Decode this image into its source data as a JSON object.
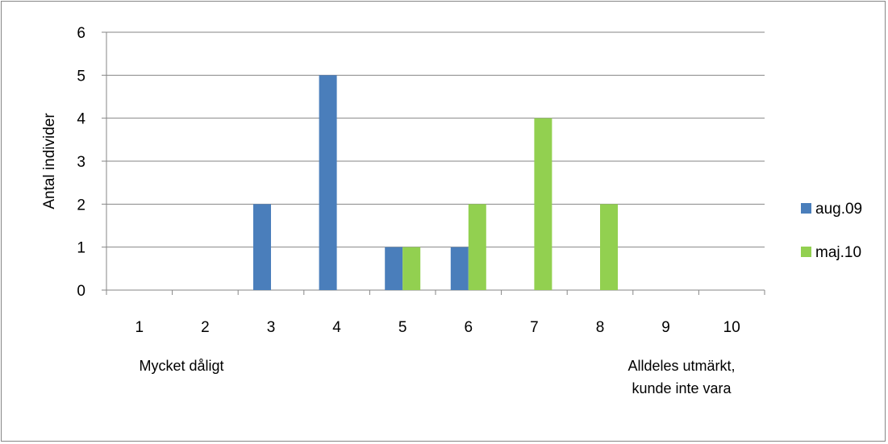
{
  "chart_data": {
    "type": "bar",
    "title": "",
    "xlabel": "",
    "ylabel": "Antal individer",
    "ylim": [
      0,
      6
    ],
    "yticks": [
      0,
      1,
      2,
      3,
      4,
      5,
      6
    ],
    "grid": true,
    "legend_position": "right",
    "categories": [
      "1",
      "2",
      "3",
      "4",
      "5",
      "6",
      "7",
      "8",
      "9",
      "10"
    ],
    "series": [
      {
        "name": "aug.09",
        "color": "#4a7ebb",
        "values": [
          0,
          0,
          2,
          5,
          1,
          1,
          0,
          0,
          0,
          0
        ]
      },
      {
        "name": "maj.10",
        "color": "#92d050",
        "values": [
          0,
          0,
          0,
          0,
          1,
          2,
          4,
          2,
          0,
          0
        ]
      }
    ],
    "annotations": [
      {
        "lines": [
          "Mycket dåligt"
        ]
      },
      {
        "lines": [
          "Alldeles utmärkt,",
          "kunde inte vara"
        ]
      }
    ]
  }
}
